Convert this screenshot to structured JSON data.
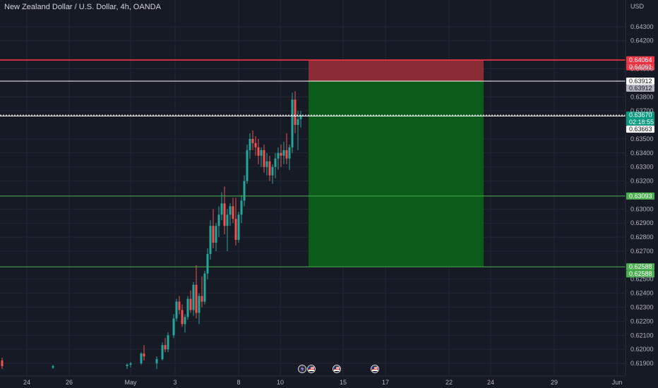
{
  "chart_data": {
    "type": "candlestick",
    "title": "New Zealand Dollar / U.S. Dollar, 4h, OANDA",
    "currency": "USD",
    "ylim": [
      0.6186,
      0.6443
    ],
    "y_ticks": [
      "0.64300",
      "0.64200",
      "0.64000",
      "0.63800",
      "0.63700",
      "0.63500",
      "0.63400",
      "0.63300",
      "0.63200",
      "0.63000",
      "0.62900",
      "0.62800",
      "0.62700",
      "0.62500",
      "0.62400",
      "0.62300",
      "0.62200",
      "0.62100",
      "0.62000",
      "0.61900"
    ],
    "x_labels": [
      {
        "label": "24",
        "slot": 38
      },
      {
        "label": "26",
        "slot": 98
      },
      {
        "label": "May",
        "slot": 185
      },
      {
        "label": "3",
        "slot": 248
      },
      {
        "label": "8",
        "slot": 338
      },
      {
        "label": "10",
        "slot": 397
      },
      {
        "label": "15",
        "slot": 486
      },
      {
        "label": "17",
        "slot": 546
      },
      {
        "label": "22",
        "slot": 636
      },
      {
        "label": "24",
        "slot": 695
      },
      {
        "label": "29",
        "slot": 785
      },
      {
        "label": "Jun",
        "slot": 874
      }
    ],
    "candles": [
      {
        "slot": 3,
        "o": 0.6192,
        "h": 0.6194,
        "l": 0.6186,
        "c": 0.6188
      },
      {
        "slot": 75,
        "o": 0.6187,
        "h": 0.6189,
        "l": 0.6186,
        "c": 0.6188
      },
      {
        "slot": 180,
        "o": 0.6188,
        "h": 0.619,
        "l": 0.6186,
        "c": 0.6189
      },
      {
        "slot": 185,
        "o": 0.6189,
        "h": 0.6191,
        "l": 0.6187,
        "c": 0.619
      },
      {
        "slot": 200,
        "o": 0.619,
        "h": 0.6198,
        "l": 0.6189,
        "c": 0.6197
      },
      {
        "slot": 204,
        "o": 0.6197,
        "h": 0.6203,
        "l": 0.6192,
        "c": 0.6195
      },
      {
        "slot": 222,
        "o": 0.619,
        "h": 0.6195,
        "l": 0.6186,
        "c": 0.6193
      },
      {
        "slot": 230,
        "o": 0.6193,
        "h": 0.6205,
        "l": 0.6192,
        "c": 0.6203
      },
      {
        "slot": 234,
        "o": 0.6203,
        "h": 0.6208,
        "l": 0.6198,
        "c": 0.62
      },
      {
        "slot": 238,
        "o": 0.62,
        "h": 0.6212,
        "l": 0.6198,
        "c": 0.621
      },
      {
        "slot": 246,
        "o": 0.621,
        "h": 0.6225,
        "l": 0.6208,
        "c": 0.6222
      },
      {
        "slot": 250,
        "o": 0.6222,
        "h": 0.6236,
        "l": 0.622,
        "c": 0.6234
      },
      {
        "slot": 254,
        "o": 0.6234,
        "h": 0.6238,
        "l": 0.6225,
        "c": 0.6228
      },
      {
        "slot": 258,
        "o": 0.6228,
        "h": 0.6232,
        "l": 0.6216,
        "c": 0.6218
      },
      {
        "slot": 262,
        "o": 0.6218,
        "h": 0.6225,
        "l": 0.6212,
        "c": 0.6223
      },
      {
        "slot": 266,
        "o": 0.6223,
        "h": 0.6238,
        "l": 0.6221,
        "c": 0.6236
      },
      {
        "slot": 270,
        "o": 0.6236,
        "h": 0.6242,
        "l": 0.6226,
        "c": 0.6228
      },
      {
        "slot": 274,
        "o": 0.6228,
        "h": 0.6248,
        "l": 0.6224,
        "c": 0.6246
      },
      {
        "slot": 278,
        "o": 0.6246,
        "h": 0.626,
        "l": 0.6222,
        "c": 0.6226
      },
      {
        "slot": 282,
        "o": 0.6226,
        "h": 0.624,
        "l": 0.6218,
        "c": 0.6238
      },
      {
        "slot": 286,
        "o": 0.6238,
        "h": 0.6252,
        "l": 0.623,
        "c": 0.6234
      },
      {
        "slot": 290,
        "o": 0.6234,
        "h": 0.6256,
        "l": 0.6232,
        "c": 0.6254
      },
      {
        "slot": 294,
        "o": 0.6254,
        "h": 0.6272,
        "l": 0.625,
        "c": 0.6268
      },
      {
        "slot": 298,
        "o": 0.6268,
        "h": 0.6292,
        "l": 0.6264,
        "c": 0.6288
      },
      {
        "slot": 302,
        "o": 0.6288,
        "h": 0.63,
        "l": 0.6272,
        "c": 0.6276
      },
      {
        "slot": 306,
        "o": 0.6276,
        "h": 0.629,
        "l": 0.627,
        "c": 0.6288
      },
      {
        "slot": 310,
        "o": 0.6288,
        "h": 0.6302,
        "l": 0.628,
        "c": 0.6296
      },
      {
        "slot": 314,
        "o": 0.6296,
        "h": 0.6312,
        "l": 0.6292,
        "c": 0.6304
      },
      {
        "slot": 318,
        "o": 0.6304,
        "h": 0.6316,
        "l": 0.6282,
        "c": 0.6288
      },
      {
        "slot": 322,
        "o": 0.6288,
        "h": 0.63,
        "l": 0.627,
        "c": 0.6296
      },
      {
        "slot": 326,
        "o": 0.6296,
        "h": 0.6304,
        "l": 0.6288,
        "c": 0.6302
      },
      {
        "slot": 330,
        "o": 0.6302,
        "h": 0.6308,
        "l": 0.629,
        "c": 0.6293
      },
      {
        "slot": 334,
        "o": 0.6293,
        "h": 0.6308,
        "l": 0.6274,
        "c": 0.6278
      },
      {
        "slot": 338,
        "o": 0.6278,
        "h": 0.6298,
        "l": 0.6276,
        "c": 0.6296
      },
      {
        "slot": 342,
        "o": 0.6296,
        "h": 0.631,
        "l": 0.629,
        "c": 0.6306
      },
      {
        "slot": 346,
        "o": 0.6306,
        "h": 0.6324,
        "l": 0.6302,
        "c": 0.632
      },
      {
        "slot": 350,
        "o": 0.632,
        "h": 0.6346,
        "l": 0.6318,
        "c": 0.6342
      },
      {
        "slot": 354,
        "o": 0.6342,
        "h": 0.6354,
        "l": 0.6336,
        "c": 0.635
      },
      {
        "slot": 358,
        "o": 0.635,
        "h": 0.6356,
        "l": 0.6342,
        "c": 0.6347
      },
      {
        "slot": 362,
        "o": 0.6347,
        "h": 0.6352,
        "l": 0.6338,
        "c": 0.6344
      },
      {
        "slot": 366,
        "o": 0.6344,
        "h": 0.635,
        "l": 0.6332,
        "c": 0.6338
      },
      {
        "slot": 370,
        "o": 0.6338,
        "h": 0.6344,
        "l": 0.633,
        "c": 0.6342
      },
      {
        "slot": 374,
        "o": 0.6342,
        "h": 0.6346,
        "l": 0.6326,
        "c": 0.633
      },
      {
        "slot": 378,
        "o": 0.633,
        "h": 0.634,
        "l": 0.6324,
        "c": 0.6334
      },
      {
        "slot": 382,
        "o": 0.6334,
        "h": 0.6338,
        "l": 0.632,
        "c": 0.6324
      },
      {
        "slot": 386,
        "o": 0.6324,
        "h": 0.6332,
        "l": 0.6318,
        "c": 0.633
      },
      {
        "slot": 390,
        "o": 0.633,
        "h": 0.634,
        "l": 0.6322,
        "c": 0.6336
      },
      {
        "slot": 394,
        "o": 0.6336,
        "h": 0.6344,
        "l": 0.6328,
        "c": 0.634
      },
      {
        "slot": 398,
        "o": 0.634,
        "h": 0.6346,
        "l": 0.633,
        "c": 0.6338
      },
      {
        "slot": 402,
        "o": 0.6338,
        "h": 0.6348,
        "l": 0.6332,
        "c": 0.6342
      },
      {
        "slot": 406,
        "o": 0.6342,
        "h": 0.6354,
        "l": 0.6332,
        "c": 0.6336
      },
      {
        "slot": 410,
        "o": 0.6336,
        "h": 0.6346,
        "l": 0.6328,
        "c": 0.6344
      },
      {
        "slot": 414,
        "o": 0.6344,
        "h": 0.6383,
        "l": 0.634,
        "c": 0.6378
      },
      {
        "slot": 418,
        "o": 0.6378,
        "h": 0.6384,
        "l": 0.6354,
        "c": 0.636
      },
      {
        "slot": 422,
        "o": 0.636,
        "h": 0.637,
        "l": 0.6342,
        "c": 0.6364
      },
      {
        "slot": 426,
        "o": 0.6364,
        "h": 0.637,
        "l": 0.6358,
        "c": 0.6367
      }
    ],
    "levels": [
      {
        "name": "stop",
        "value": 0.64064,
        "label": "0.64064",
        "style": "red"
      },
      {
        "name": "stop-2",
        "value": 0.64061,
        "label": "0.64061",
        "style": "red"
      },
      {
        "name": "entry",
        "value": 0.63912,
        "label": "0.63912",
        "style": "white"
      },
      {
        "name": "entry-2",
        "value": 0.63912,
        "label": "0.63912",
        "style": "gray"
      },
      {
        "name": "last",
        "value": 0.6367,
        "label": "0.63670",
        "sub": "02:18:55",
        "style": "teal"
      },
      {
        "name": "mid",
        "value": 0.63663,
        "label": "0.63663",
        "style": "white"
      },
      {
        "name": "support",
        "value": 0.63093,
        "label": "0.63093",
        "style": "green"
      },
      {
        "name": "target",
        "value": 0.62588,
        "label": "0.62588",
        "style": "green"
      },
      {
        "name": "target-2",
        "value": 0.62588,
        "label": "0.62588",
        "style": "green"
      }
    ],
    "position": {
      "x_start_slot": 437,
      "x_end_slot": 685,
      "stop": 0.64064,
      "entry": 0.63912,
      "target": 0.62588
    },
    "events": [
      {
        "slot": 428,
        "icon": "lightning-icon"
      },
      {
        "slot": 441,
        "icon": "us-flag-icon"
      },
      {
        "slot": 477,
        "icon": "us-flag-icon"
      },
      {
        "slot": 531,
        "icon": "us-flag-icon"
      }
    ],
    "colors": {
      "up": "#26a69a",
      "down": "#ef5350",
      "bg": "#161a25",
      "grid": "#232734",
      "stop_zone": "#8b2b35",
      "target_zone": "#0b5b1a",
      "red": "#f23645",
      "green": "#4caf50",
      "teal": "#089981"
    },
    "grid": true
  }
}
